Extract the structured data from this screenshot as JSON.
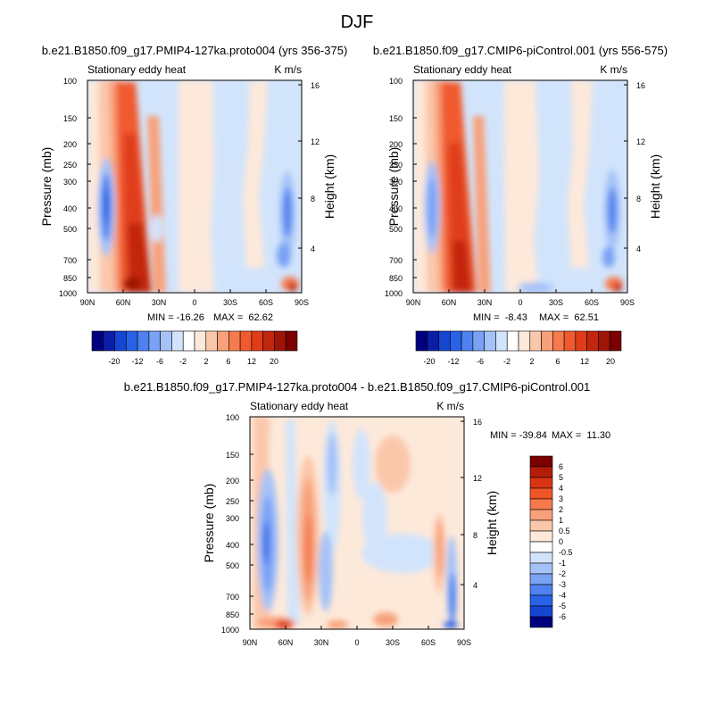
{
  "page_title": "DJF",
  "chart_data": [
    {
      "type": "heatmap",
      "title": "b.e21.B1850.f09_g17.PMIP4-127ka.proto004 (yrs 356-375)",
      "left_label": "Stationary eddy heat",
      "right_label": "K m/s",
      "ylabel": "Pressure (mb)",
      "ylabel_right": "Height (km)",
      "x_ticks": [
        "90N",
        "60N",
        "30N",
        "0",
        "30S",
        "60S",
        "90S"
      ],
      "x_values": [
        90,
        60,
        30,
        0,
        -30,
        -60,
        -90
      ],
      "y_ticks": [
        "100",
        "150",
        "200",
        "250",
        "300",
        "400",
        "500",
        "700",
        "850",
        "1000"
      ],
      "y_values": [
        100,
        150,
        200,
        250,
        300,
        400,
        500,
        700,
        850,
        1000
      ],
      "y_right_ticks": [
        "16",
        "12",
        "8",
        "4"
      ],
      "y_right_values": [
        16,
        12,
        8,
        4
      ],
      "ylim": [
        1000,
        100
      ],
      "xlim": [
        90,
        -90
      ],
      "min_text": "MIN = -16.26",
      "max_text": "MAX =  62.62",
      "min": -16.26,
      "max": 62.62
    },
    {
      "type": "heatmap",
      "title": "b.e21.B1850.f09_g17.CMIP6-piControl.001 (yrs 556-575)",
      "left_label": "Stationary eddy heat",
      "right_label": "K m/s",
      "ylabel": "Pressure (mb)",
      "ylabel_right": "Height (km)",
      "x_ticks": [
        "90N",
        "60N",
        "30N",
        "0",
        "30S",
        "60S",
        "90S"
      ],
      "x_values": [
        90,
        60,
        30,
        0,
        -30,
        -60,
        -90
      ],
      "y_ticks": [
        "100",
        "150",
        "200",
        "250",
        "300",
        "400",
        "500",
        "700",
        "850",
        "1000"
      ],
      "y_values": [
        100,
        150,
        200,
        250,
        300,
        400,
        500,
        700,
        850,
        1000
      ],
      "y_right_ticks": [
        "16",
        "12",
        "8",
        "4"
      ],
      "y_right_values": [
        16,
        12,
        8,
        4
      ],
      "ylim": [
        1000,
        100
      ],
      "xlim": [
        90,
        -90
      ],
      "min_text": "MIN =  -8.43",
      "max_text": "MAX =  62.51",
      "min": -8.43,
      "max": 62.51
    },
    {
      "type": "heatmap",
      "title": "b.e21.B1850.f09_g17.PMIP4-127ka.proto004 - b.e21.B1850.f09_g17.CMIP6-piControl.001",
      "left_label": "Stationary eddy heat",
      "right_label": "K m/s",
      "ylabel": "Pressure (mb)",
      "ylabel_right": "Height (km)",
      "x_ticks": [
        "90N",
        "60N",
        "30N",
        "0",
        "30S",
        "60S",
        "90S"
      ],
      "x_values": [
        90,
        60,
        30,
        0,
        -30,
        -60,
        -90
      ],
      "y_ticks": [
        "100",
        "150",
        "200",
        "250",
        "300",
        "400",
        "500",
        "700",
        "850",
        "1000"
      ],
      "y_values": [
        100,
        150,
        200,
        250,
        300,
        400,
        500,
        700,
        850,
        1000
      ],
      "y_right_ticks": [
        "16",
        "12",
        "8",
        "4"
      ],
      "y_right_values": [
        16,
        12,
        8,
        4
      ],
      "ylim": [
        1000,
        100
      ],
      "xlim": [
        90,
        -90
      ],
      "min_text": "MIN = -39.84",
      "max_text": "MAX =  11.30",
      "min": -39.84,
      "max": 11.3
    }
  ],
  "colorbar_top": {
    "labels": [
      "-20",
      "-12",
      "-6",
      "-2",
      "2",
      "6",
      "12",
      "20"
    ],
    "colors": [
      "#00007f",
      "#0a1ea8",
      "#1446d2",
      "#2862e6",
      "#4f82f0",
      "#79a2f5",
      "#a5c2f8",
      "#d2e4fb",
      "#ffffff",
      "#fde9da",
      "#fbc7aa",
      "#f8a07a",
      "#f57a4e",
      "#f05a2e",
      "#e03c1a",
      "#c3260e",
      "#9e1406",
      "#7c0000"
    ]
  },
  "colorbar_diff": {
    "labels": [
      "6",
      "5",
      "4",
      "3",
      "2",
      "1",
      "0.5",
      "0",
      "-0.5",
      "-1",
      "-2",
      "-3",
      "-4",
      "-5",
      "-6"
    ],
    "colors": [
      "#7c0000",
      "#b31c0a",
      "#d83414",
      "#ef5526",
      "#f57a4e",
      "#f8a07a",
      "#fbc7aa",
      "#fde9da",
      "#ffffff",
      "#d2e4fb",
      "#a5c2f8",
      "#79a2f5",
      "#4f82f0",
      "#2862e6",
      "#1446d2",
      "#00007f"
    ]
  }
}
